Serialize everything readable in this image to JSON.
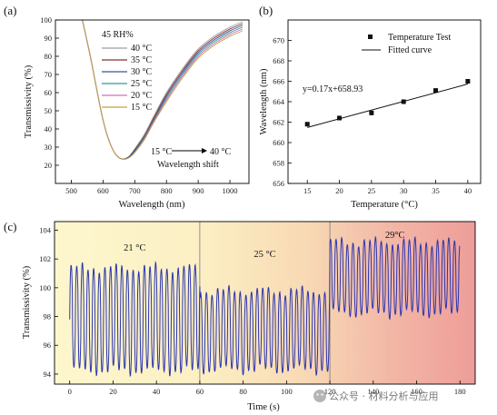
{
  "chart_data": [
    {
      "panel": "(a)",
      "type": "line",
      "xlabel": "Wavelength (nm)",
      "ylabel": "Transmissivity (%)",
      "xlim": [
        450,
        1060
      ],
      "ylim": [
        10,
        100
      ],
      "xticks": [
        500,
        600,
        700,
        800,
        900,
        1000
      ],
      "yticks": [
        20,
        30,
        40,
        50,
        60,
        70,
        80,
        90,
        100
      ],
      "grid": false,
      "legend_title": "45 RH%",
      "legend_position": "top-right",
      "annotation_from": "15 °C",
      "annotation_to": "40 °C",
      "annotation_text": "Wavelength shift",
      "curve_points_x": [
        535,
        560,
        580,
        600,
        620,
        640,
        660,
        680,
        700,
        730,
        760,
        800,
        850,
        900,
        950,
        1000,
        1040
      ],
      "series": [
        {
          "name": "40 °C",
          "color": "#9e9e9e",
          "values": [
            100,
            80,
            62,
            45,
            33,
            26,
            23.5,
            24.5,
            29,
            37,
            47,
            60,
            73,
            84,
            91,
            96,
            99
          ],
          "min_wl": 666
        },
        {
          "name": "35 °C",
          "color": "#8b2f2f",
          "values": [
            100,
            80,
            62,
            45,
            33,
            26,
            23.5,
            24.5,
            28.5,
            36,
            46,
            59,
            72,
            83,
            90,
            95,
            98
          ],
          "min_wl": 665
        },
        {
          "name": "30 °C",
          "color": "#3c4f9a",
          "values": [
            100,
            80,
            62,
            45,
            33,
            26,
            23.5,
            24.5,
            28,
            35.5,
            45,
            58,
            71,
            82,
            89,
            94,
            97
          ],
          "min_wl": 664
        },
        {
          "name": "25 °C",
          "color": "#2f9a9a",
          "values": [
            100,
            80,
            62,
            45,
            33,
            26,
            23.5,
            24,
            27.5,
            35,
            44.5,
            57,
            70,
            81,
            88,
            93,
            96
          ],
          "min_wl": 663
        },
        {
          "name": "20 °C",
          "color": "#d070c0",
          "values": [
            100,
            80,
            62,
            45,
            33,
            26,
            23.5,
            24,
            27,
            34.5,
            44,
            56,
            69,
            80,
            87,
            92,
            95
          ],
          "min_wl": 662
        },
        {
          "name": "15 °C",
          "color": "#c8a040",
          "values": [
            100,
            80,
            62,
            45,
            33,
            26,
            23.5,
            24,
            27,
            34,
            43.5,
            55,
            68,
            79,
            86,
            91,
            94
          ],
          "min_wl": 662
        }
      ]
    },
    {
      "panel": "(b)",
      "type": "scatter",
      "xlabel": "Temperature (°C)",
      "ylabel": "Wavelength (nm)",
      "xlim": [
        12,
        42
      ],
      "ylim": [
        656,
        672
      ],
      "xticks": [
        15,
        20,
        25,
        30,
        35,
        40
      ],
      "yticks": [
        656,
        658,
        660,
        662,
        664,
        666,
        668,
        670
      ],
      "grid": false,
      "legend_position": "top-right",
      "equation": "y=0.17x+658.93",
      "series": [
        {
          "name": "Temperature Test",
          "x": [
            15,
            20,
            25,
            30,
            35,
            40
          ],
          "y": [
            661.8,
            662.4,
            662.9,
            664.0,
            665.1,
            666.0
          ]
        },
        {
          "name": "Fitted curve",
          "slope": 0.17,
          "intercept": 658.93,
          "x_range": [
            15,
            40
          ]
        }
      ]
    },
    {
      "panel": "(c)",
      "type": "line",
      "xlabel": "Time (s)",
      "ylabel": "Transmissivity (%)",
      "xlim": [
        -7,
        187
      ],
      "ylim": [
        93.3,
        104.6
      ],
      "xticks": [
        0,
        20,
        40,
        60,
        80,
        100,
        120,
        140,
        160,
        180
      ],
      "yticks": [
        94,
        96,
        98,
        100,
        102,
        104
      ],
      "grid": false,
      "line_color": "#2b35b0",
      "period_s": 2.6,
      "dividers": [
        60,
        120
      ],
      "segments": [
        {
          "label": "21 °C",
          "t_start": 0,
          "t_end": 60,
          "min": 94.2,
          "max": 101.4
        },
        {
          "label": "25 °C",
          "t_start": 60,
          "t_end": 120,
          "min": 94.3,
          "max": 99.8
        },
        {
          "label": "29°C",
          "t_start": 120,
          "t_end": 180,
          "min": 98.2,
          "max": 103.2
        }
      ]
    }
  ],
  "watermark": "公众号 · 材料分析与应用"
}
